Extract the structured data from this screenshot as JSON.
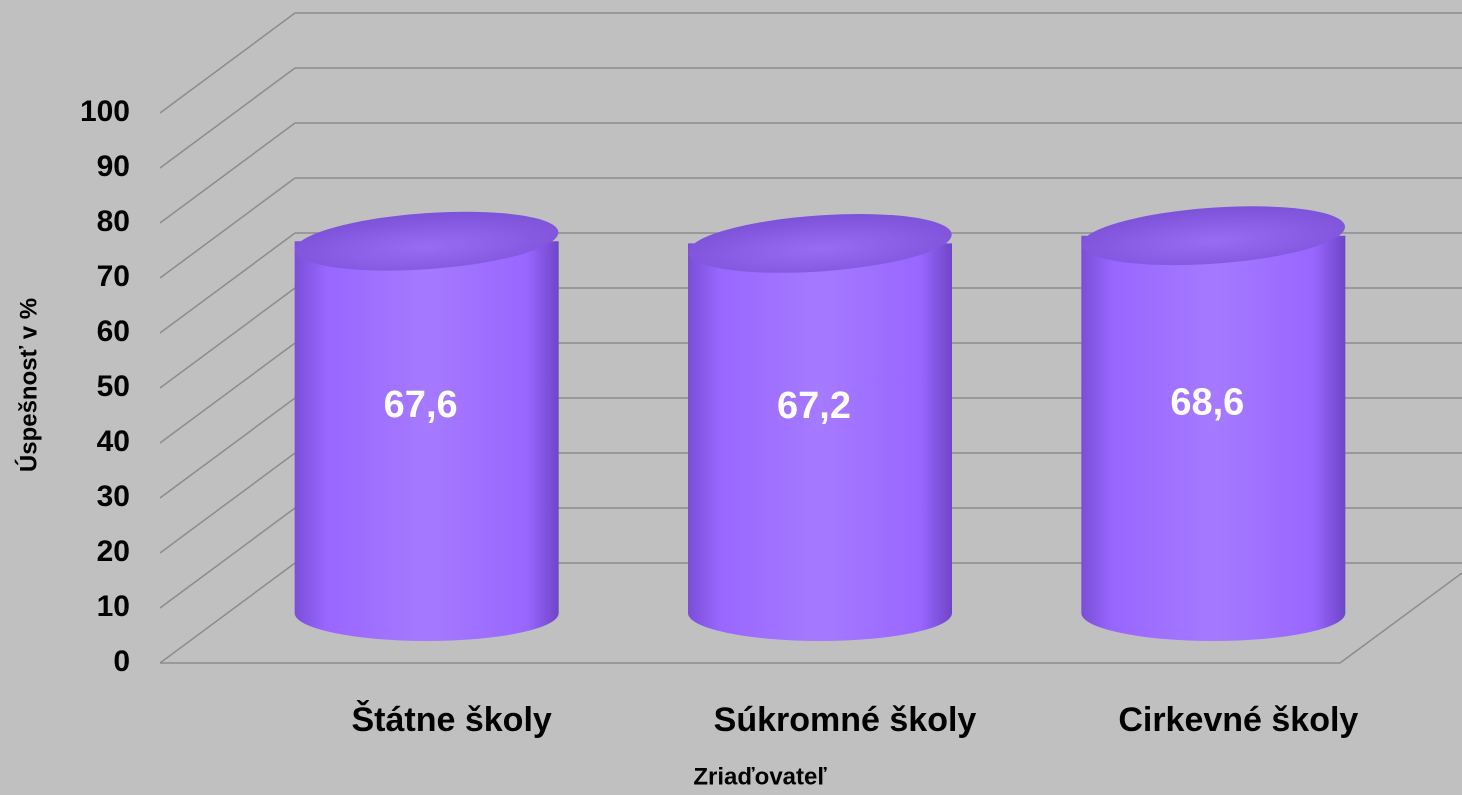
{
  "chart_data": {
    "type": "bar",
    "categories": [
      "Štátne školy",
      "Súkromné školy",
      "Cirkevné školy"
    ],
    "values": [
      67.6,
      67.2,
      68.6
    ],
    "value_labels": [
      "67,6",
      "67,2",
      "68,6"
    ],
    "color": "#9966ff",
    "ylim": [
      0,
      100
    ],
    "yticks": [
      0,
      10,
      20,
      30,
      40,
      50,
      60,
      70,
      80,
      90,
      100
    ],
    "grid": true,
    "y_axis_label": "Úspešnosť v %",
    "x_axis_label": "Zriaďovateľ"
  }
}
